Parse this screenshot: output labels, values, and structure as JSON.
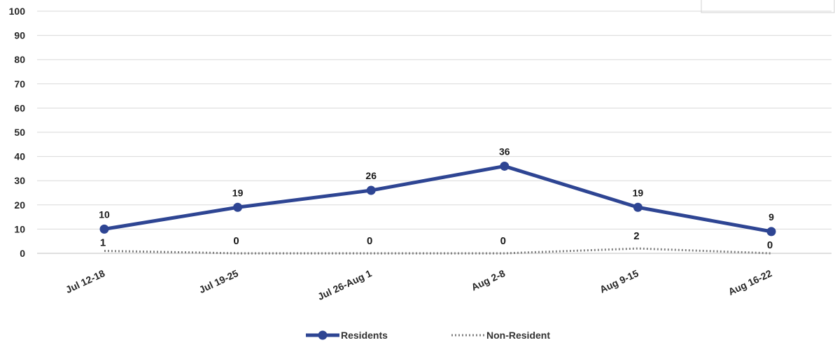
{
  "chart_data": {
    "type": "line",
    "categories": [
      "Jul 12-18",
      "Jul 19-25",
      "Jul 26-Aug 1",
      "Aug 2-8",
      "Aug 9-15",
      "Aug 16-22"
    ],
    "series": [
      {
        "name": "Residents",
        "values": [
          10,
          19,
          26,
          36,
          19,
          9
        ],
        "color": "#2e4593",
        "style": "solid-markers"
      },
      {
        "name": "Non-Resident",
        "values": [
          1,
          0,
          0,
          0,
          2,
          0
        ],
        "color": "#808080",
        "style": "dotted"
      }
    ],
    "yticks": [
      0,
      10,
      20,
      30,
      40,
      50,
      60,
      70,
      80,
      90,
      100
    ],
    "ylim": [
      0,
      100
    ],
    "grid": true,
    "legend_position": "bottom"
  }
}
